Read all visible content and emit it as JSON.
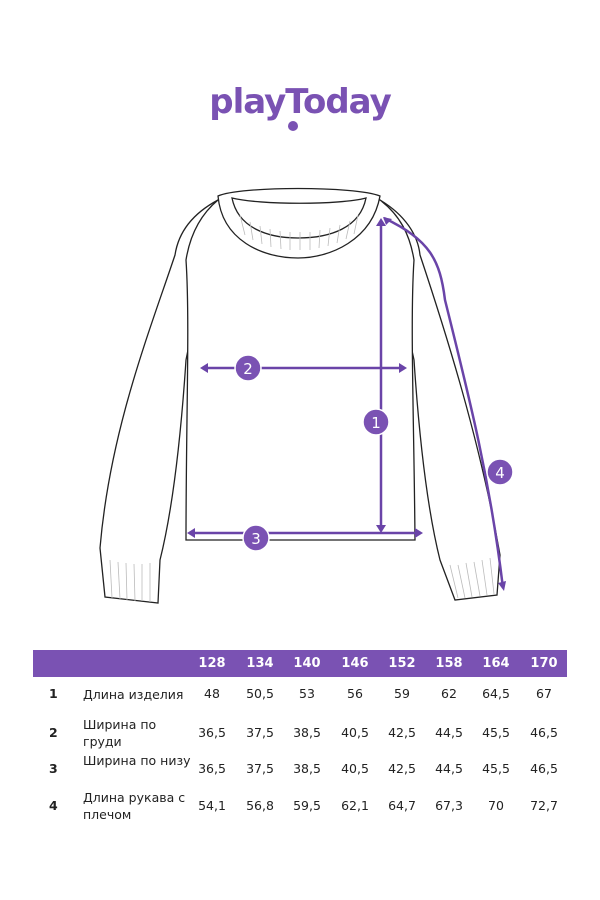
{
  "brand": {
    "logo": "playToday",
    "color": "#7a52b3"
  },
  "diagram": {
    "markers": [
      "1",
      "2",
      "3",
      "4"
    ]
  },
  "table": {
    "sizes": [
      "128",
      "134",
      "140",
      "146",
      "152",
      "158",
      "164",
      "170"
    ],
    "rows": [
      {
        "num": "1",
        "label": "Длина изделия",
        "values": [
          "48",
          "50,5",
          "53",
          "56",
          "59",
          "62",
          "64,5",
          "67"
        ]
      },
      {
        "num": "2",
        "label": "Ширина по груди",
        "values": [
          "36,5",
          "37,5",
          "38,5",
          "40,5",
          "42,5",
          "44,5",
          "45,5",
          "46,5"
        ]
      },
      {
        "num": "3",
        "label": "Ширина по низу",
        "values": [
          "36,5",
          "37,5",
          "38,5",
          "40,5",
          "42,5",
          "44,5",
          "45,5",
          "46,5"
        ]
      },
      {
        "num": "4",
        "label": "Длина рукава с плечом",
        "values": [
          "54,1",
          "56,8",
          "59,5",
          "62,1",
          "64,7",
          "67,3",
          "70",
          "72,7"
        ]
      }
    ]
  }
}
